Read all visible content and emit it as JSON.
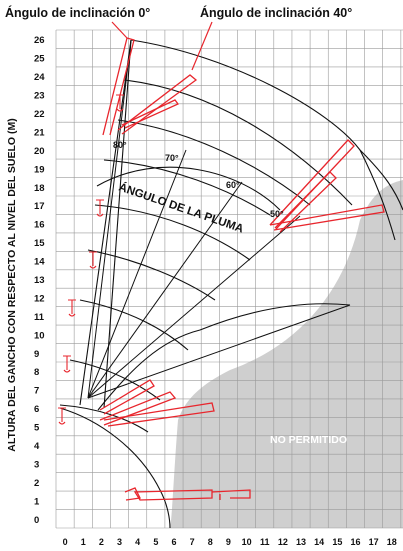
{
  "annotations": {
    "tilt_0": "Ángulo de inclinación 0°",
    "tilt_40": "Ángulo de inclinación 40°",
    "boom_angle": "ÁNGULO DE LA PLUMA",
    "not_permitted": "NO PERMITIDO"
  },
  "y_axis": {
    "label": "ALTURA DEL GANCHO CON RESPECTO AL NIVEL DEL SUELO (M)",
    "ticks": [
      "0",
      "1",
      "2",
      "3",
      "4",
      "5",
      "6",
      "7",
      "8",
      "9",
      "10",
      "11",
      "12",
      "13",
      "14",
      "15",
      "16",
      "17",
      "18",
      "19",
      "20",
      "21",
      "22",
      "23",
      "24",
      "25",
      "26"
    ]
  },
  "x_axis": {
    "ticks": [
      "0",
      "1",
      "2",
      "3",
      "4",
      "5",
      "6",
      "7",
      "8",
      "9",
      "10",
      "11",
      "12",
      "13",
      "14",
      "15",
      "16",
      "17",
      "18",
      "1"
    ]
  },
  "boom_angle_labels": [
    "80°",
    "70°",
    "60°",
    "50°"
  ],
  "colors": {
    "grid": "#9a9a9a",
    "curve": "#111111",
    "boom": "#e8262d",
    "forbidden": "#cfcfcf"
  }
}
